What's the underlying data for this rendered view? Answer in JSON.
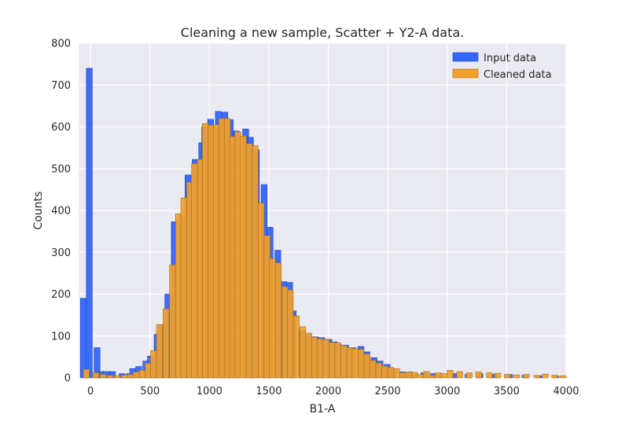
{
  "chart_data": {
    "type": "bar",
    "title": "Cleaning a new sample, Scatter + Y2-A data.",
    "xlabel": "B1-A",
    "ylabel": "Counts",
    "xlim": [
      -100,
      4000
    ],
    "ylim": [
      0,
      800
    ],
    "x_ticks": [
      0,
      500,
      1000,
      1500,
      2000,
      2500,
      3000,
      3500,
      4000
    ],
    "y_ticks": [
      0,
      100,
      200,
      300,
      400,
      500,
      600,
      700,
      800
    ],
    "grid": true,
    "legend_placement": "top-right",
    "series": [
      {
        "name": "Input data",
        "color": "#3366ff",
        "bin_width": 50,
        "bins": [
          {
            "x0": -85,
            "y": 190
          },
          {
            "x0": -35,
            "y": 740
          },
          {
            "x0": 30,
            "y": 72
          },
          {
            "x0": 60,
            "y": 15
          },
          {
            "x0": 110,
            "y": 15
          },
          {
            "x0": 160,
            "y": 15
          },
          {
            "x0": 240,
            "y": 10
          },
          {
            "x0": 300,
            "y": 10
          },
          {
            "x0": 330,
            "y": 22
          },
          {
            "x0": 380,
            "y": 27
          },
          {
            "x0": 440,
            "y": 40
          },
          {
            "x0": 480,
            "y": 52
          },
          {
            "x0": 535,
            "y": 104
          },
          {
            "x0": 575,
            "y": 127
          },
          {
            "x0": 625,
            "y": 200
          },
          {
            "x0": 680,
            "y": 373
          },
          {
            "x0": 740,
            "y": 387
          },
          {
            "x0": 795,
            "y": 485
          },
          {
            "x0": 855,
            "y": 522
          },
          {
            "x0": 910,
            "y": 562
          },
          {
            "x0": 935,
            "y": 600
          },
          {
            "x0": 985,
            "y": 618
          },
          {
            "x0": 1050,
            "y": 637
          },
          {
            "x0": 1105,
            "y": 635
          },
          {
            "x0": 1150,
            "y": 617
          },
          {
            "x0": 1200,
            "y": 590
          },
          {
            "x0": 1280,
            "y": 595
          },
          {
            "x0": 1320,
            "y": 575
          },
          {
            "x0": 1370,
            "y": 545
          },
          {
            "x0": 1435,
            "y": 462
          },
          {
            "x0": 1485,
            "y": 360
          },
          {
            "x0": 1550,
            "y": 305
          },
          {
            "x0": 1600,
            "y": 230
          },
          {
            "x0": 1650,
            "y": 228
          },
          {
            "x0": 1680,
            "y": 160
          },
          {
            "x0": 1755,
            "y": 112
          },
          {
            "x0": 1810,
            "y": 103
          },
          {
            "x0": 1865,
            "y": 98
          },
          {
            "x0": 1920,
            "y": 96
          },
          {
            "x0": 1980,
            "y": 92
          },
          {
            "x0": 2025,
            "y": 86
          },
          {
            "x0": 2060,
            "y": 80
          },
          {
            "x0": 2120,
            "y": 78
          },
          {
            "x0": 2180,
            "y": 72
          },
          {
            "x0": 2250,
            "y": 75
          },
          {
            "x0": 2300,
            "y": 62
          },
          {
            "x0": 2360,
            "y": 48
          },
          {
            "x0": 2410,
            "y": 40
          },
          {
            "x0": 2470,
            "y": 32
          },
          {
            "x0": 2525,
            "y": 22
          },
          {
            "x0": 2600,
            "y": 14
          },
          {
            "x0": 2660,
            "y": 14
          },
          {
            "x0": 2700,
            "y": 10
          },
          {
            "x0": 2780,
            "y": 12
          },
          {
            "x0": 2860,
            "y": 10
          },
          {
            "x0": 2920,
            "y": 8
          },
          {
            "x0": 3040,
            "y": 10
          },
          {
            "x0": 3150,
            "y": 8
          },
          {
            "x0": 3250,
            "y": 10
          },
          {
            "x0": 3370,
            "y": 8
          },
          {
            "x0": 3500,
            "y": 8
          },
          {
            "x0": 3630,
            "y": 6
          },
          {
            "x0": 3750,
            "y": 5
          },
          {
            "x0": 3890,
            "y": 4
          }
        ]
      },
      {
        "name": "Cleaned data",
        "color": "#f2a12a",
        "bin_width": 50,
        "bins": [
          {
            "x0": -60,
            "y": 20
          },
          {
            "x0": 20,
            "y": 12
          },
          {
            "x0": 80,
            "y": 8
          },
          {
            "x0": 140,
            "y": 6
          },
          {
            "x0": 200,
            "y": 5
          },
          {
            "x0": 260,
            "y": 6
          },
          {
            "x0": 310,
            "y": 8
          },
          {
            "x0": 360,
            "y": 14
          },
          {
            "x0": 410,
            "y": 18
          },
          {
            "x0": 460,
            "y": 35
          },
          {
            "x0": 505,
            "y": 65
          },
          {
            "x0": 555,
            "y": 127
          },
          {
            "x0": 610,
            "y": 165
          },
          {
            "x0": 665,
            "y": 270
          },
          {
            "x0": 715,
            "y": 392
          },
          {
            "x0": 760,
            "y": 430
          },
          {
            "x0": 810,
            "y": 468
          },
          {
            "x0": 850,
            "y": 512
          },
          {
            "x0": 900,
            "y": 522
          },
          {
            "x0": 940,
            "y": 608
          },
          {
            "x0": 990,
            "y": 604
          },
          {
            "x0": 1035,
            "y": 605
          },
          {
            "x0": 1080,
            "y": 620
          },
          {
            "x0": 1125,
            "y": 620
          },
          {
            "x0": 1170,
            "y": 577
          },
          {
            "x0": 1215,
            "y": 588
          },
          {
            "x0": 1260,
            "y": 578
          },
          {
            "x0": 1310,
            "y": 560
          },
          {
            "x0": 1360,
            "y": 555
          },
          {
            "x0": 1410,
            "y": 418
          },
          {
            "x0": 1460,
            "y": 340
          },
          {
            "x0": 1505,
            "y": 285
          },
          {
            "x0": 1555,
            "y": 275
          },
          {
            "x0": 1610,
            "y": 218
          },
          {
            "x0": 1655,
            "y": 210
          },
          {
            "x0": 1705,
            "y": 148
          },
          {
            "x0": 1760,
            "y": 122
          },
          {
            "x0": 1810,
            "y": 107
          },
          {
            "x0": 1860,
            "y": 97
          },
          {
            "x0": 1905,
            "y": 93
          },
          {
            "x0": 1955,
            "y": 92
          },
          {
            "x0": 2005,
            "y": 85
          },
          {
            "x0": 2055,
            "y": 84
          },
          {
            "x0": 2105,
            "y": 77
          },
          {
            "x0": 2155,
            "y": 72
          },
          {
            "x0": 2200,
            "y": 70
          },
          {
            "x0": 2250,
            "y": 68
          },
          {
            "x0": 2300,
            "y": 57
          },
          {
            "x0": 2350,
            "y": 42
          },
          {
            "x0": 2400,
            "y": 35
          },
          {
            "x0": 2450,
            "y": 28
          },
          {
            "x0": 2500,
            "y": 25
          },
          {
            "x0": 2550,
            "y": 22
          },
          {
            "x0": 2600,
            "y": 12
          },
          {
            "x0": 2650,
            "y": 14
          },
          {
            "x0": 2700,
            "y": 13
          },
          {
            "x0": 2750,
            "y": 8
          },
          {
            "x0": 2800,
            "y": 15
          },
          {
            "x0": 2850,
            "y": 6
          },
          {
            "x0": 2900,
            "y": 12
          },
          {
            "x0": 2950,
            "y": 10
          },
          {
            "x0": 3000,
            "y": 18
          },
          {
            "x0": 3080,
            "y": 15
          },
          {
            "x0": 3160,
            "y": 12
          },
          {
            "x0": 3240,
            "y": 14
          },
          {
            "x0": 3330,
            "y": 12
          },
          {
            "x0": 3400,
            "y": 11
          },
          {
            "x0": 3480,
            "y": 8
          },
          {
            "x0": 3560,
            "y": 7
          },
          {
            "x0": 3640,
            "y": 8
          },
          {
            "x0": 3730,
            "y": 6
          },
          {
            "x0": 3800,
            "y": 9
          },
          {
            "x0": 3880,
            "y": 6
          },
          {
            "x0": 3950,
            "y": 5
          }
        ]
      }
    ]
  }
}
